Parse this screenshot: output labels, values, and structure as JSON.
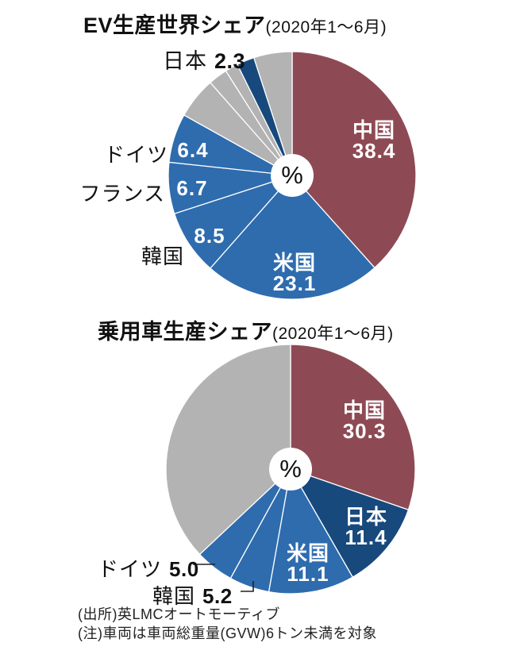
{
  "colors": {
    "red": "#8e4a54",
    "blue": "#2e6cae",
    "navy": "#17497d",
    "gray": "#b4b3b3",
    "separator": "#ffffff"
  },
  "footer": {
    "source": "(出所)英LMCオートモーティブ",
    "note": "(注)車両は車両総重量(GVW)6トン未満を対象"
  },
  "chart_data": [
    {
      "type": "pie",
      "title": "EV生産世界シェア",
      "period": "(2020年1～6月)",
      "center_label": "%",
      "unit": "%",
      "start_angle": "12 o'clock, clockwise",
      "slices": [
        {
          "key": "china",
          "label": "中国",
          "value": "38.4",
          "color": "red"
        },
        {
          "key": "us",
          "label": "米国",
          "value": "23.1",
          "color": "blue"
        },
        {
          "key": "korea",
          "label": "韓国",
          "value": "8.5",
          "color": "blue"
        },
        {
          "key": "france",
          "label": "フランス",
          "value": "6.7",
          "color": "blue"
        },
        {
          "key": "germany",
          "label": "ドイツ",
          "value": "6.4",
          "color": "blue"
        },
        {
          "key": "others-1",
          "label": "",
          "value": "5.4",
          "color": "gray"
        },
        {
          "key": "others-2",
          "label": "",
          "value": "2.5",
          "color": "gray"
        },
        {
          "key": "others-3",
          "label": "",
          "value": "1.7",
          "color": "gray"
        },
        {
          "key": "japan",
          "label": "日本",
          "value": "2.3",
          "color": "navy"
        },
        {
          "key": "others-4",
          "label": "",
          "value": "5.0",
          "color": "gray"
        }
      ]
    },
    {
      "type": "pie",
      "title": "乗用車生産シェア",
      "period": "(2020年1～6月)",
      "center_label": "%",
      "unit": "%",
      "start_angle": "12 o'clock, clockwise",
      "slices": [
        {
          "key": "china",
          "label": "中国",
          "value": "30.3",
          "color": "red"
        },
        {
          "key": "japan",
          "label": "日本",
          "value": "11.4",
          "color": "navy"
        },
        {
          "key": "us",
          "label": "米国",
          "value": "11.1",
          "color": "blue"
        },
        {
          "key": "korea",
          "label": "韓国",
          "value": "5.2",
          "color": "blue"
        },
        {
          "key": "germany",
          "label": "ドイツ",
          "value": "5.0",
          "color": "blue"
        },
        {
          "key": "others",
          "label": "",
          "value": "37.0",
          "color": "gray"
        }
      ]
    }
  ]
}
